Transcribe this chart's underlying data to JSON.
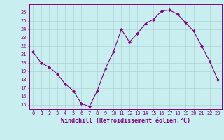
{
  "x": [
    0,
    1,
    2,
    3,
    4,
    5,
    6,
    7,
    8,
    9,
    10,
    11,
    12,
    13,
    14,
    15,
    16,
    17,
    18,
    19,
    20,
    21,
    22,
    23
  ],
  "y": [
    21.3,
    20.0,
    19.5,
    18.7,
    17.5,
    16.7,
    15.2,
    14.8,
    16.7,
    19.3,
    21.3,
    24.0,
    22.5,
    23.5,
    24.7,
    25.2,
    26.2,
    26.3,
    25.8,
    24.8,
    23.8,
    22.0,
    20.2,
    18.0
  ],
  "line_color": "#800080",
  "marker": "D",
  "marker_size": 2.0,
  "bg_color": "#c8eef0",
  "grid_color": "#aacccc",
  "xlabel": "Windchill (Refroidissement éolien,°C)",
  "xlabel_color": "#800080",
  "ylabel_ticks": [
    15,
    16,
    17,
    18,
    19,
    20,
    21,
    22,
    23,
    24,
    25,
    26
  ],
  "ylim": [
    14.5,
    27.0
  ],
  "xlim": [
    -0.5,
    23.5
  ],
  "xticks": [
    0,
    1,
    2,
    3,
    4,
    5,
    6,
    7,
    8,
    9,
    10,
    11,
    12,
    13,
    14,
    15,
    16,
    17,
    18,
    19,
    20,
    21,
    22,
    23
  ],
  "tick_color": "#800080",
  "tick_fontsize": 5.0,
  "xlabel_fontsize": 6.0,
  "spine_color": "#800080"
}
